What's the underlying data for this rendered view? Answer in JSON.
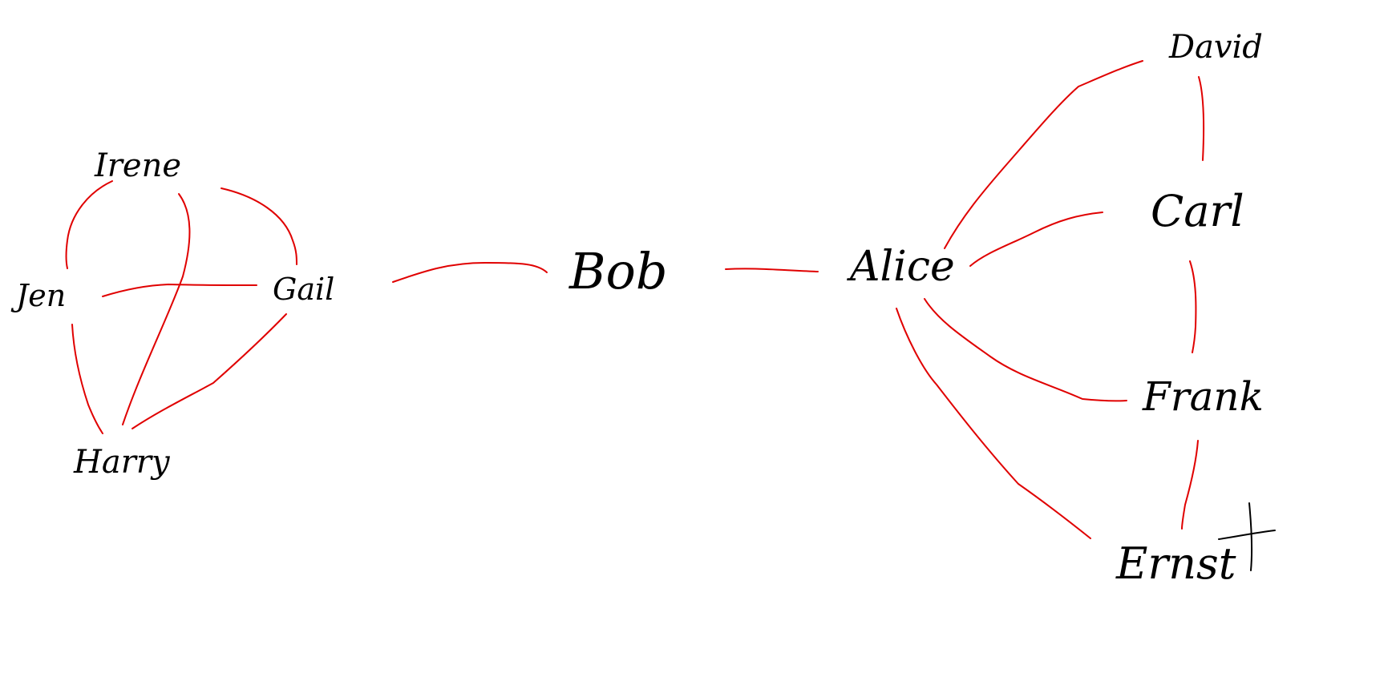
{
  "graph": {
    "nodes": [
      {
        "id": "irene",
        "label": "Irene"
      },
      {
        "id": "jen",
        "label": "Jen"
      },
      {
        "id": "gail",
        "label": "Gail"
      },
      {
        "id": "harry",
        "label": "Harry"
      },
      {
        "id": "bob",
        "label": "Bob"
      },
      {
        "id": "alice",
        "label": "Alice"
      },
      {
        "id": "david",
        "label": "David"
      },
      {
        "id": "carl",
        "label": "Carl"
      },
      {
        "id": "frank",
        "label": "Frank"
      },
      {
        "id": "ernst",
        "label": "Ernst"
      }
    ],
    "edges": [
      {
        "from": "irene",
        "to": "jen"
      },
      {
        "from": "irene",
        "to": "gail"
      },
      {
        "from": "irene",
        "to": "harry"
      },
      {
        "from": "jen",
        "to": "gail"
      },
      {
        "from": "jen",
        "to": "harry"
      },
      {
        "from": "gail",
        "to": "harry"
      },
      {
        "from": "gail",
        "to": "bob"
      },
      {
        "from": "bob",
        "to": "alice"
      },
      {
        "from": "alice",
        "to": "david"
      },
      {
        "from": "alice",
        "to": "carl"
      },
      {
        "from": "alice",
        "to": "frank"
      },
      {
        "from": "alice",
        "to": "ernst"
      },
      {
        "from": "david",
        "to": "carl"
      },
      {
        "from": "carl",
        "to": "frank"
      },
      {
        "from": "frank",
        "to": "ernst"
      }
    ],
    "edge_color": "#e00000",
    "label_color": "#000000"
  }
}
